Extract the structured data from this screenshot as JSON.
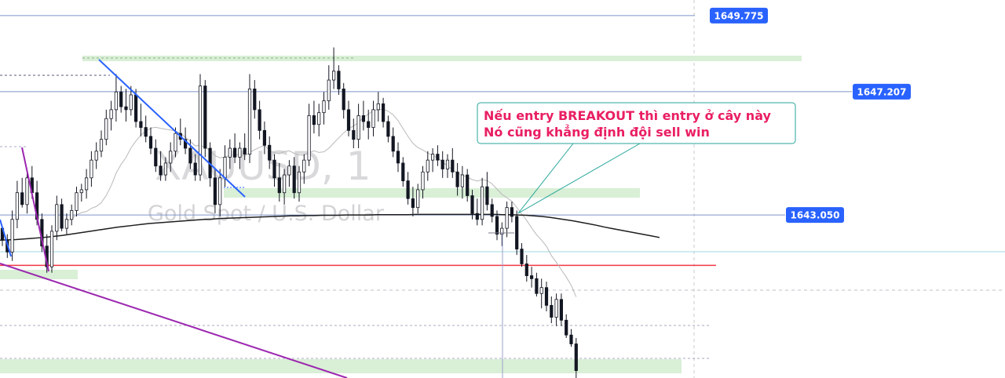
{
  "chart_data": {
    "type": "candlestick",
    "symbol": "XAUUSD",
    "timeframe": "1",
    "description": "Gold Spot / U.S. Dollar",
    "price_range": [
      1637.55,
      1650.3
    ],
    "price_tags": [
      {
        "price": 1649.775,
        "label": "1649.775"
      },
      {
        "price": 1647.207,
        "label": "1647.207"
      },
      {
        "price": 1643.05,
        "label": "1643.050"
      }
    ],
    "red_line_price": 1641.35,
    "annotation": {
      "lines": [
        "Nếu entry BREAKOUT thì entry ở cây này",
        "Nó cũng khẳng định đội sell win"
      ]
    },
    "ohlc": [
      [
        1642.6,
        1642.6,
        1642.0,
        1642.2
      ],
      [
        1642.2,
        1642.4,
        1641.6,
        1641.8
      ],
      [
        1641.8,
        1643.2,
        1641.5,
        1642.9
      ],
      [
        1642.9,
        1644.2,
        1642.6,
        1643.8
      ],
      [
        1643.8,
        1644.3,
        1643.3,
        1643.4
      ],
      [
        1643.4,
        1644.6,
        1643.1,
        1644.3
      ],
      [
        1644.3,
        1644.7,
        1643.6,
        1643.8
      ],
      [
        1643.8,
        1644.2,
        1642.7,
        1642.9
      ],
      [
        1642.9,
        1643.1,
        1641.8,
        1642.0
      ],
      [
        1642.0,
        1642.4,
        1641.1,
        1641.3
      ],
      [
        1641.3,
        1642.7,
        1641.1,
        1642.5
      ],
      [
        1642.5,
        1643.7,
        1642.2,
        1643.4
      ],
      [
        1643.4,
        1643.6,
        1642.5,
        1642.6
      ],
      [
        1642.6,
        1643.1,
        1642.4,
        1642.9
      ],
      [
        1642.9,
        1643.4,
        1642.7,
        1643.2
      ],
      [
        1643.2,
        1644.0,
        1643.0,
        1643.8
      ],
      [
        1643.8,
        1644.1,
        1643.5,
        1643.9
      ],
      [
        1643.9,
        1644.6,
        1643.6,
        1644.3
      ],
      [
        1644.3,
        1645.2,
        1644.0,
        1644.9
      ],
      [
        1644.9,
        1645.5,
        1644.6,
        1645.2
      ],
      [
        1645.2,
        1645.9,
        1645.0,
        1645.6
      ],
      [
        1645.6,
        1646.6,
        1645.4,
        1646.3
      ],
      [
        1646.3,
        1646.9,
        1645.9,
        1646.6
      ],
      [
        1646.6,
        1647.8,
        1646.2,
        1647.2
      ],
      [
        1647.2,
        1647.4,
        1646.5,
        1646.7
      ],
      [
        1646.7,
        1647.3,
        1646.2,
        1646.6
      ],
      [
        1646.6,
        1647.4,
        1646.4,
        1647.1
      ],
      [
        1647.1,
        1647.3,
        1646.0,
        1646.2
      ],
      [
        1646.2,
        1646.8,
        1645.7,
        1646.0
      ],
      [
        1646.0,
        1646.4,
        1645.5,
        1645.7
      ],
      [
        1645.7,
        1646.0,
        1645.1,
        1645.3
      ],
      [
        1645.3,
        1645.6,
        1644.5,
        1644.7
      ],
      [
        1644.7,
        1645.2,
        1644.2,
        1644.4
      ],
      [
        1644.4,
        1645.0,
        1644.2,
        1644.8
      ],
      [
        1644.8,
        1645.5,
        1644.5,
        1645.2
      ],
      [
        1645.2,
        1646.0,
        1645.0,
        1645.8
      ],
      [
        1645.8,
        1646.3,
        1645.4,
        1645.6
      ],
      [
        1645.6,
        1646.0,
        1645.1,
        1645.3
      ],
      [
        1645.3,
        1645.6,
        1644.6,
        1644.8
      ],
      [
        1644.8,
        1645.1,
        1644.2,
        1644.4
      ],
      [
        1644.4,
        1647.8,
        1644.2,
        1647.4
      ],
      [
        1647.4,
        1647.6,
        1645.0,
        1645.3
      ],
      [
        1645.3,
        1645.5,
        1644.0,
        1644.3
      ],
      [
        1644.3,
        1644.6,
        1643.1,
        1643.4
      ],
      [
        1643.4,
        1644.6,
        1643.0,
        1644.3
      ],
      [
        1644.3,
        1645.4,
        1644.0,
        1645.0
      ],
      [
        1645.0,
        1645.6,
        1644.6,
        1645.3
      ],
      [
        1645.3,
        1645.8,
        1644.8,
        1645.0
      ],
      [
        1645.0,
        1645.5,
        1644.6,
        1645.3
      ],
      [
        1645.3,
        1645.8,
        1644.9,
        1645.1
      ],
      [
        1645.1,
        1647.8,
        1644.8,
        1647.3
      ],
      [
        1647.3,
        1647.6,
        1646.3,
        1646.6
      ],
      [
        1646.6,
        1646.9,
        1645.6,
        1645.9
      ],
      [
        1645.9,
        1646.2,
        1645.1,
        1645.4
      ],
      [
        1645.4,
        1645.7,
        1644.6,
        1644.9
      ],
      [
        1644.9,
        1645.1,
        1644.0,
        1644.3
      ],
      [
        1644.3,
        1644.8,
        1643.5,
        1643.8
      ],
      [
        1643.8,
        1644.6,
        1643.4,
        1644.4
      ],
      [
        1644.4,
        1644.9,
        1644.0,
        1644.7
      ],
      [
        1644.7,
        1645.0,
        1643.6,
        1643.8
      ],
      [
        1643.8,
        1644.7,
        1643.5,
        1644.5
      ],
      [
        1644.5,
        1645.1,
        1644.1,
        1644.9
      ],
      [
        1644.9,
        1646.8,
        1644.7,
        1646.4
      ],
      [
        1646.4,
        1646.9,
        1645.8,
        1646.1
      ],
      [
        1646.1,
        1646.8,
        1645.7,
        1646.5
      ],
      [
        1646.5,
        1647.2,
        1646.1,
        1646.9
      ],
      [
        1646.9,
        1648.1,
        1646.6,
        1647.6
      ],
      [
        1647.6,
        1648.7,
        1647.3,
        1647.9
      ],
      [
        1647.9,
        1648.1,
        1647.1,
        1647.3
      ],
      [
        1647.3,
        1647.5,
        1646.3,
        1646.6
      ],
      [
        1646.6,
        1646.9,
        1645.7,
        1645.9
      ],
      [
        1645.9,
        1646.3,
        1645.3,
        1645.6
      ],
      [
        1645.6,
        1646.8,
        1645.3,
        1646.4
      ],
      [
        1646.4,
        1646.9,
        1645.9,
        1646.2
      ],
      [
        1646.2,
        1646.6,
        1645.6,
        1646.0
      ],
      [
        1646.0,
        1646.9,
        1645.7,
        1646.6
      ],
      [
        1646.6,
        1647.2,
        1646.2,
        1646.8
      ],
      [
        1646.8,
        1647.0,
        1646.0,
        1646.2
      ],
      [
        1646.2,
        1646.4,
        1645.5,
        1645.7
      ],
      [
        1645.7,
        1646.0,
        1645.0,
        1645.2
      ],
      [
        1645.2,
        1645.5,
        1644.5,
        1644.8
      ],
      [
        1644.8,
        1645.0,
        1644.0,
        1644.2
      ],
      [
        1644.2,
        1644.5,
        1643.4,
        1643.6
      ],
      [
        1643.6,
        1644.0,
        1643.0,
        1643.3
      ],
      [
        1643.3,
        1644.1,
        1643.1,
        1643.9
      ],
      [
        1643.9,
        1644.7,
        1643.6,
        1644.5
      ],
      [
        1644.5,
        1645.2,
        1644.2,
        1644.9
      ],
      [
        1644.9,
        1645.3,
        1644.5,
        1645.1
      ],
      [
        1645.1,
        1645.4,
        1644.7,
        1644.9
      ],
      [
        1644.9,
        1645.2,
        1644.3,
        1644.6
      ],
      [
        1644.6,
        1645.1,
        1644.3,
        1644.9
      ],
      [
        1644.9,
        1645.3,
        1644.3,
        1644.5
      ],
      [
        1644.5,
        1644.8,
        1643.7,
        1644.0
      ],
      [
        1644.0,
        1644.7,
        1643.6,
        1644.4
      ],
      [
        1644.4,
        1644.6,
        1643.5,
        1643.7
      ],
      [
        1643.7,
        1643.9,
        1642.9,
        1643.1
      ],
      [
        1643.1,
        1643.6,
        1642.7,
        1642.9
      ],
      [
        1642.9,
        1644.3,
        1642.7,
        1644.0
      ],
      [
        1644.0,
        1644.5,
        1643.2,
        1643.4
      ],
      [
        1643.4,
        1643.6,
        1642.8,
        1643.0
      ],
      [
        1643.0,
        1643.2,
        1642.2,
        1642.4
      ],
      [
        1642.4,
        1642.8,
        1642.0,
        1642.6
      ],
      [
        1642.6,
        1643.5,
        1642.3,
        1643.3
      ],
      [
        1643.3,
        1643.5,
        1642.8,
        1643.0
      ],
      [
        1643.0,
        1643.2,
        1641.7,
        1641.9
      ],
      [
        1641.9,
        1642.1,
        1641.3,
        1641.4
      ],
      [
        1641.4,
        1641.7,
        1640.8,
        1641.0
      ],
      [
        1641.0,
        1641.3,
        1640.6,
        1640.9
      ],
      [
        1640.9,
        1641.1,
        1640.3,
        1640.4
      ],
      [
        1640.4,
        1640.9,
        1639.9,
        1640.6
      ],
      [
        1640.6,
        1640.8,
        1639.8,
        1640.0
      ],
      [
        1640.0,
        1640.3,
        1639.4,
        1639.6
      ],
      [
        1639.6,
        1640.4,
        1639.3,
        1640.2
      ],
      [
        1640.2,
        1640.4,
        1639.3,
        1639.5
      ],
      [
        1639.5,
        1639.7,
        1638.9,
        1639.0
      ],
      [
        1639.0,
        1639.2,
        1638.6,
        1638.7
      ],
      [
        1638.7,
        1638.9,
        1637.5,
        1637.8
      ]
    ],
    "ema_long": [
      1642.2,
      1642.21,
      1642.22,
      1642.24,
      1642.26,
      1642.28,
      1642.3,
      1642.33,
      1642.36,
      1642.4,
      1642.44,
      1642.48,
      1642.52,
      1642.56,
      1642.6,
      1642.64,
      1642.67,
      1642.7,
      1642.73,
      1642.76,
      1642.78,
      1642.8,
      1642.82,
      1642.84,
      1642.86,
      1642.88,
      1642.9,
      1642.91,
      1642.93,
      1642.94,
      1642.95,
      1642.96,
      1642.97,
      1642.98,
      1642.99,
      1643.0,
      1643.01,
      1643.02,
      1643.02,
      1643.03,
      1643.03,
      1643.04,
      1643.04,
      1643.04,
      1643.05,
      1643.05,
      1643.05,
      1643.05,
      1643.06,
      1643.06,
      1643.06,
      1643.06,
      1643.06,
      1643.07,
      1643.07,
      1643.07,
      1643.07,
      1643.07,
      1643.07,
      1643.07,
      1643.07,
      1643.07,
      1643.07,
      1643.07,
      1643.06,
      1643.06,
      1643.05,
      1643.04,
      1643.02,
      1643.0,
      1642.97,
      1642.93,
      1642.89,
      1642.85,
      1642.8,
      1642.75,
      1642.7,
      1642.64,
      1642.59,
      1642.54,
      1642.49,
      1642.44,
      1642.39,
      1642.34,
      1642.29
    ]
  }
}
